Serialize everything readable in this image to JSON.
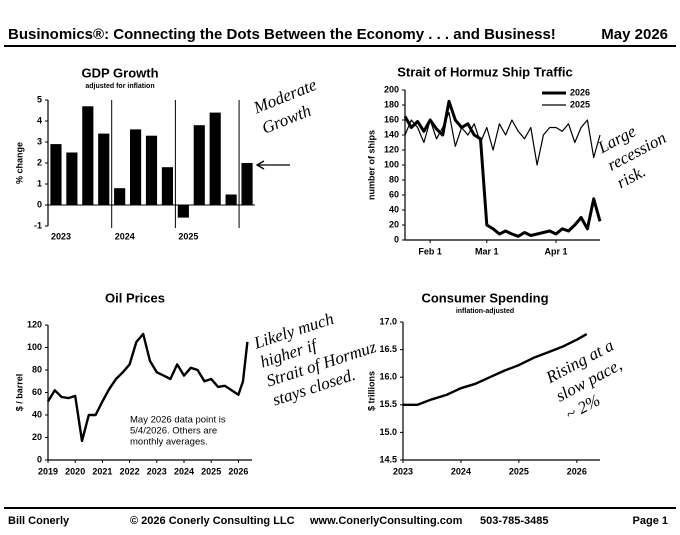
{
  "header": {
    "title": "Businomics®: Connecting the Dots Between the Economy . . . and Business!",
    "date": "May 2026"
  },
  "footer": {
    "author": "Bill Conerly",
    "copyright": "© 2026 Conerly Consulting LLC",
    "website": "www.ConerlyConsulting.com",
    "phone": "503-785-3485",
    "page": "Page 1"
  },
  "chart_data": [
    {
      "type": "bar",
      "title": "GDP Growth",
      "subtitle": "adjusted for inflation",
      "y_label": "% change",
      "categories": [
        "2023",
        null,
        null,
        null,
        "2024",
        null,
        null,
        null,
        "2025",
        null,
        null,
        null,
        null
      ],
      "values": [
        2.9,
        2.5,
        4.7,
        3.4,
        0.8,
        3.6,
        3.3,
        1.8,
        -0.6,
        3.8,
        4.4,
        0.5,
        2.0
      ],
      "color": "#000000",
      "ylim": [
        -1,
        5
      ],
      "yticks": [
        -1,
        0,
        1,
        2,
        3,
        4,
        5
      ],
      "annotation": [
        "Moderate",
        "Growth"
      ]
    },
    {
      "type": "line",
      "title": "Strait of Hormuz Ship Traffic",
      "y_label": "number of ships",
      "categories": [
        null,
        null,
        null,
        null,
        "Feb 1",
        null,
        null,
        null,
        null,
        null,
        null,
        null,
        null,
        "Mar 1",
        null,
        null,
        null,
        null,
        null,
        null,
        null,
        null,
        null,
        null,
        "Apr 1",
        null,
        null,
        null,
        null,
        null,
        null,
        null
      ],
      "series": [
        {
          "name": "2026",
          "color": "#000000",
          "values": [
            165,
            150,
            158,
            145,
            160,
            148,
            140,
            185,
            160,
            150,
            155,
            140,
            135,
            20,
            15,
            8,
            12,
            8,
            5,
            10,
            6,
            8,
            10,
            12,
            8,
            15,
            12,
            20,
            30,
            15,
            55,
            25
          ]
        },
        {
          "name": "2025",
          "color": "#000000",
          "values": [
            140,
            160,
            150,
            130,
            160,
            135,
            150,
            170,
            125,
            150,
            140,
            155,
            130,
            150,
            120,
            155,
            140,
            160,
            145,
            135,
            150,
            100,
            140,
            150,
            150,
            145,
            155,
            130,
            150,
            160,
            110,
            140
          ]
        }
      ],
      "ylim": [
        0,
        200
      ],
      "yticks": [
        0,
        20,
        40,
        60,
        80,
        100,
        120,
        140,
        160,
        180,
        200
      ],
      "annotation": [
        "Large",
        "recession",
        "risk."
      ]
    },
    {
      "type": "line",
      "title": "Oil Prices",
      "y_label": "$ / barrel",
      "x": [
        2019,
        2019.25,
        2019.5,
        2019.75,
        2020,
        2020.25,
        2020.5,
        2020.75,
        2021,
        2021.25,
        2021.5,
        2021.75,
        2022,
        2022.25,
        2022.5,
        2022.75,
        2023,
        2023.25,
        2023.5,
        2023.75,
        2024,
        2024.25,
        2024.5,
        2024.75,
        2025,
        2025.25,
        2025.5,
        2025.75,
        2026,
        2026.17,
        2026.33
      ],
      "values": [
        52,
        62,
        56,
        55,
        57,
        17,
        40,
        40,
        52,
        63,
        72,
        78,
        85,
        105,
        112,
        88,
        78,
        75,
        72,
        85,
        75,
        82,
        80,
        70,
        72,
        65,
        66,
        62,
        58,
        70,
        105
      ],
      "color": "#000000",
      "xlim": [
        2019,
        2026.5
      ],
      "xticks": [
        2019,
        2020,
        2021,
        2022,
        2023,
        2024,
        2025,
        2026
      ],
      "ylim": [
        0,
        120
      ],
      "yticks": [
        0,
        20,
        40,
        60,
        80,
        100,
        120
      ],
      "note": [
        "May 2026 data point is",
        "5/4/2026. Others are",
        "monthly averages."
      ],
      "annotation": [
        "Likely much",
        "higher if",
        "Strait of Hormuz",
        "stays closed."
      ]
    },
    {
      "type": "line",
      "title": "Consumer Spending",
      "subtitle": "inflation-adjusted",
      "y_label": "$ trillions",
      "x": [
        2023,
        2023.25,
        2023.5,
        2023.75,
        2024,
        2024.25,
        2024.5,
        2024.75,
        2025,
        2025.25,
        2025.5,
        2025.75,
        2026,
        2026.17
      ],
      "values": [
        15.5,
        15.5,
        15.6,
        15.68,
        15.8,
        15.88,
        16.0,
        16.12,
        16.22,
        16.35,
        16.45,
        16.55,
        16.68,
        16.78
      ],
      "color": "#000000",
      "xlim": [
        2023,
        2026.4
      ],
      "xticks": [
        2023,
        2024,
        2025,
        2026
      ],
      "ylim": [
        14.5,
        17.0
      ],
      "yticks": [
        14.5,
        {
          "value": 15.0,
          "label": "15.0"
        },
        15.5,
        {
          "value": 16.0,
          "label": "16.0"
        },
        16.5,
        {
          "value": 17.0,
          "label": "17.0"
        }
      ],
      "annotation": [
        "Rising at a",
        "slow pace,",
        "~ 2%"
      ]
    }
  ]
}
